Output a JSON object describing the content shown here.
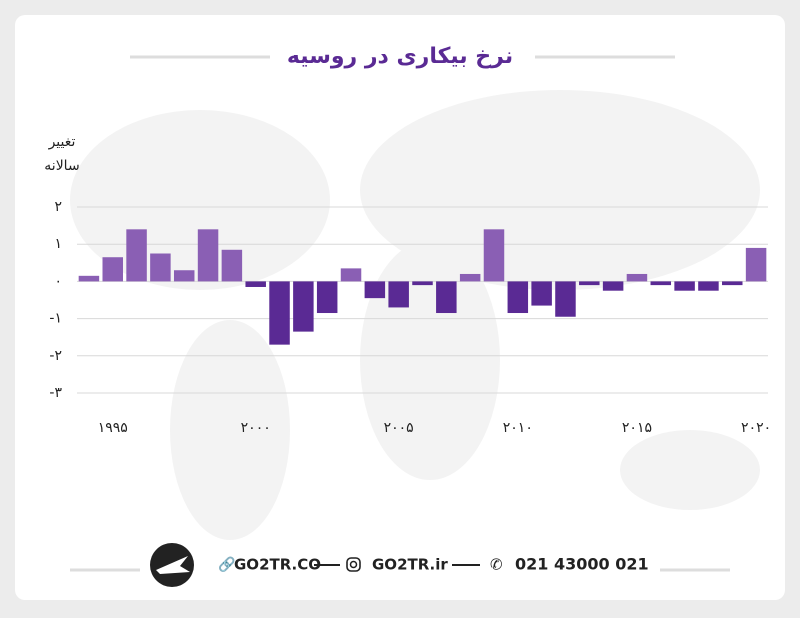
{
  "chart_data": {
    "type": "bar",
    "title": "نرخ بیکاری در روسیه",
    "y_label_lines": [
      "تغییر",
      "سالانه"
    ],
    "categories": [
      null,
      "۱۹۹۵",
      null,
      null,
      null,
      null,
      null,
      "۲۰۰۰",
      null,
      null,
      null,
      null,
      null,
      "۲۰۰۵",
      null,
      null,
      null,
      null,
      "۲۰۱۰",
      null,
      null,
      null,
      null,
      "۲۰۱۵",
      null,
      null,
      null,
      null,
      "۲۰۲۰"
    ],
    "values": [
      0.15,
      0.65,
      1.4,
      0.75,
      0.3,
      1.4,
      0.85,
      -0.15,
      -1.7,
      -1.35,
      -0.85,
      0.35,
      -0.45,
      -0.7,
      -0.1,
      -0.85,
      0.2,
      1.4,
      -0.85,
      -0.65,
      -0.95,
      -0.1,
      -0.25,
      0.2,
      -0.1,
      -0.25,
      -0.25,
      -0.1,
      0.9
    ],
    "positive_color": "#8a5fb4",
    "negative_color": "#5a2a94",
    "ylim": [
      -3,
      2
    ],
    "yticks": [
      {
        "value": 2,
        "label": "۲"
      },
      {
        "value": 1,
        "label": "۱"
      },
      {
        "value": 0,
        "label": "۰"
      },
      {
        "value": -1,
        "label": "-۱"
      },
      {
        "value": -2,
        "label": "-۲"
      },
      {
        "value": -3,
        "label": "-۳"
      }
    ],
    "grid": true
  },
  "footer": {
    "website": "GO2TR.CO",
    "instagram": "GO2TR.ir",
    "phone": "021 43000 021"
  }
}
